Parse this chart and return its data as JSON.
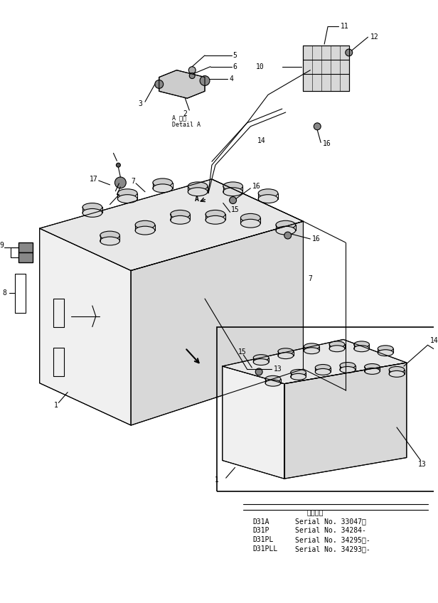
{
  "bg_color": "#ffffff",
  "line_color": "#000000",
  "fig_width": 6.16,
  "fig_height": 8.48,
  "dpi": 100,
  "serial_header": "通用号依",
  "serial_lines": [
    [
      "D31A",
      "Serial No. 33047・"
    ],
    [
      "D31P",
      "Serial No. 34284-"
    ],
    [
      "D31PL",
      "Serial No. 34295・-"
    ],
    [
      "D31PLL",
      "Serial No. 34293・-"
    ]
  ]
}
